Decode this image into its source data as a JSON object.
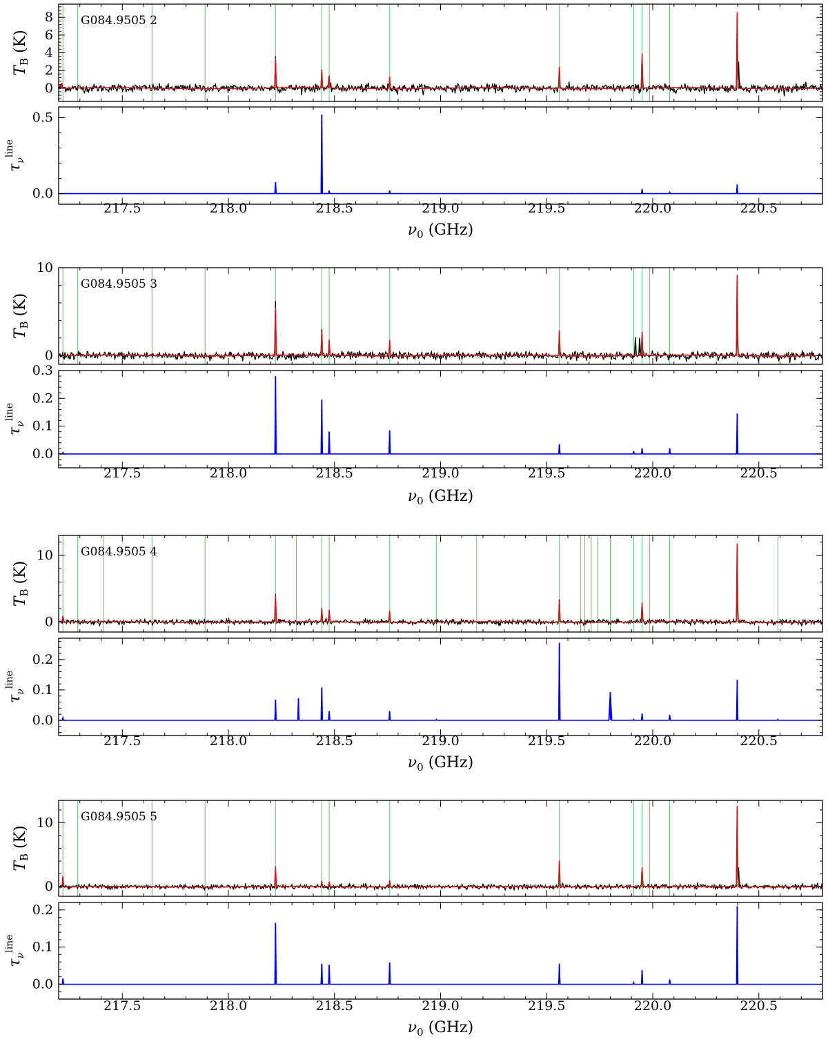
{
  "figure": {
    "x_axis": {
      "label": "ν0 (GHz)",
      "range": [
        217.2,
        220.8
      ],
      "ticks": [
        217.5,
        218.0,
        218.5,
        219.0,
        219.5,
        220.0,
        220.5
      ]
    },
    "y_label_top": "TB (K)",
    "y_label_bottom": "τνline",
    "colors": {
      "observed": "#000000",
      "model": "#c81e1e",
      "optical_depth": "#0000ff",
      "line_markers": "#4caf50"
    }
  },
  "chart_data": [
    {
      "panel": "G084.9505 2",
      "type": "line",
      "label": "G084.9505 2",
      "brightness": {
        "ylabel": "TB (K)",
        "ylim": [
          -1.5,
          9.5
        ],
        "yticks": [
          0,
          2,
          4,
          6,
          8
        ],
        "noise_rms": 0.25,
        "series": [
          {
            "name": "observed",
            "color": "#000000",
            "peaks": [
              {
                "x": 217.215,
                "y": 0.6
              },
              {
                "x": 218.222,
                "y": 3.6
              },
              {
                "x": 218.44,
                "y": 2.1
              },
              {
                "x": 218.475,
                "y": 1.4
              },
              {
                "x": 218.76,
                "y": 1.2
              },
              {
                "x": 219.56,
                "y": 2.4
              },
              {
                "x": 219.95,
                "y": 3.9
              },
              {
                "x": 220.398,
                "y": 5.5
              },
              {
                "x": 220.405,
                "y": 3.0
              }
            ]
          },
          {
            "name": "model",
            "color": "#c81e1e",
            "peaks": [
              {
                "x": 217.215,
                "y": 0.6
              },
              {
                "x": 218.222,
                "y": 3.4
              },
              {
                "x": 218.44,
                "y": 2.0
              },
              {
                "x": 218.475,
                "y": 1.3
              },
              {
                "x": 218.76,
                "y": 1.3
              },
              {
                "x": 219.56,
                "y": 2.4
              },
              {
                "x": 219.95,
                "y": 3.7
              },
              {
                "x": 220.398,
                "y": 8.6
              }
            ]
          }
        ]
      },
      "optical_depth": {
        "ylabel": "τνline",
        "ylim": [
          -0.07,
          0.57
        ],
        "yticks": [
          0.0,
          0.5
        ],
        "tick_decimals": 1,
        "series": [
          {
            "name": "tau",
            "color": "#0000ff",
            "peaks": [
              {
                "x": 218.222,
                "y": 0.075
              },
              {
                "x": 218.44,
                "y": 0.52
              },
              {
                "x": 218.475,
                "y": 0.02
              },
              {
                "x": 218.76,
                "y": 0.02
              },
              {
                "x": 219.95,
                "y": 0.03
              },
              {
                "x": 220.08,
                "y": 0.01
              },
              {
                "x": 220.398,
                "y": 0.06
              }
            ]
          }
        ]
      },
      "line_markers": [
        217.22,
        217.29,
        217.64,
        217.89,
        218.222,
        218.44,
        218.475,
        218.76,
        219.56,
        219.91,
        219.95,
        219.985,
        220.08
      ]
    },
    {
      "panel": "G084.9505 3",
      "type": "line",
      "label": "G084.9505 3",
      "brightness": {
        "ylabel": "TB (K)",
        "ylim": [
          -1.0,
          10.0
        ],
        "yticks": [
          0,
          10
        ],
        "noise_rms": 0.25,
        "series": [
          {
            "name": "observed",
            "color": "#000000",
            "peaks": [
              {
                "x": 218.222,
                "y": 6.2
              },
              {
                "x": 218.44,
                "y": 3.0
              },
              {
                "x": 218.475,
                "y": 1.8
              },
              {
                "x": 218.76,
                "y": 1.6
              },
              {
                "x": 219.56,
                "y": 2.6
              },
              {
                "x": 219.918,
                "y": 2.1
              },
              {
                "x": 219.938,
                "y": 2.0
              },
              {
                "x": 220.398,
                "y": 4.0
              }
            ]
          },
          {
            "name": "model",
            "color": "#c81e1e",
            "peaks": [
              {
                "x": 218.222,
                "y": 5.5
              },
              {
                "x": 218.44,
                "y": 2.7
              },
              {
                "x": 218.475,
                "y": 1.8
              },
              {
                "x": 218.76,
                "y": 1.8
              },
              {
                "x": 219.56,
                "y": 2.8
              },
              {
                "x": 219.95,
                "y": 2.7
              },
              {
                "x": 220.398,
                "y": 9.2
              }
            ]
          }
        ]
      },
      "optical_depth": {
        "ylabel": "τνline",
        "ylim": [
          -0.05,
          0.3
        ],
        "yticks": [
          0.0,
          0.1,
          0.2,
          0.3
        ],
        "tick_decimals": 1,
        "series": [
          {
            "name": "tau",
            "color": "#0000ff",
            "peaks": [
              {
                "x": 217.22,
                "y": 0.005
              },
              {
                "x": 218.222,
                "y": 0.28
              },
              {
                "x": 218.44,
                "y": 0.195
              },
              {
                "x": 218.475,
                "y": 0.08
              },
              {
                "x": 218.76,
                "y": 0.085
              },
              {
                "x": 219.56,
                "y": 0.035
              },
              {
                "x": 219.91,
                "y": 0.01
              },
              {
                "x": 219.95,
                "y": 0.02
              },
              {
                "x": 220.08,
                "y": 0.02
              },
              {
                "x": 220.398,
                "y": 0.145
              }
            ]
          }
        ]
      },
      "line_markers": [
        217.22,
        217.29,
        217.64,
        217.89,
        218.222,
        218.44,
        218.475,
        218.76,
        219.56,
        219.91,
        219.95,
        219.985,
        220.08
      ]
    },
    {
      "panel": "G084.9505 4",
      "type": "line",
      "label": "G084.9505 4",
      "brightness": {
        "ylabel": "TB (K)",
        "ylim": [
          -1.5,
          13.0
        ],
        "yticks": [
          0,
          10
        ],
        "noise_rms": 0.2,
        "series": [
          {
            "name": "observed",
            "color": "#000000",
            "peaks": [
              {
                "x": 217.22,
                "y": 0.9
              },
              {
                "x": 218.222,
                "y": 4.2
              },
              {
                "x": 218.44,
                "y": 2.0
              },
              {
                "x": 218.475,
                "y": 1.8
              },
              {
                "x": 218.76,
                "y": 1.6
              },
              {
                "x": 219.56,
                "y": 3.2
              },
              {
                "x": 219.95,
                "y": 2.9
              },
              {
                "x": 220.398,
                "y": 5.5
              }
            ]
          },
          {
            "name": "model",
            "color": "#c81e1e",
            "peaks": [
              {
                "x": 217.22,
                "y": 0.9
              },
              {
                "x": 218.222,
                "y": 4.0
              },
              {
                "x": 218.44,
                "y": 1.9
              },
              {
                "x": 218.475,
                "y": 1.8
              },
              {
                "x": 218.76,
                "y": 1.7
              },
              {
                "x": 219.56,
                "y": 3.2
              },
              {
                "x": 219.95,
                "y": 2.9
              },
              {
                "x": 220.398,
                "y": 11.8
              }
            ]
          }
        ]
      },
      "optical_depth": {
        "ylabel": "τνline",
        "ylim": [
          -0.05,
          0.27
        ],
        "yticks": [
          0.0,
          0.1,
          0.2
        ],
        "tick_decimals": 1,
        "series": [
          {
            "name": "tau",
            "color": "#0000ff",
            "peaks": [
              {
                "x": 217.22,
                "y": 0.008
              },
              {
                "x": 218.222,
                "y": 0.068
              },
              {
                "x": 218.33,
                "y": 0.072
              },
              {
                "x": 218.44,
                "y": 0.108
              },
              {
                "x": 218.475,
                "y": 0.03
              },
              {
                "x": 218.76,
                "y": 0.03
              },
              {
                "x": 218.98,
                "y": 0.003
              },
              {
                "x": 219.56,
                "y": 0.255
              },
              {
                "x": 219.8,
                "y": 0.093
              },
              {
                "x": 219.91,
                "y": 0.003
              },
              {
                "x": 219.95,
                "y": 0.022
              },
              {
                "x": 220.08,
                "y": 0.018
              },
              {
                "x": 220.398,
                "y": 0.133
              },
              {
                "x": 220.59,
                "y": 0.003
              }
            ]
          }
        ]
      },
      "line_markers": [
        217.22,
        217.29,
        217.41,
        217.64,
        217.89,
        218.222,
        218.32,
        218.44,
        218.475,
        218.76,
        218.98,
        219.17,
        219.56,
        219.66,
        219.68,
        219.71,
        219.74,
        219.8,
        219.91,
        219.95,
        219.985,
        220.08,
        220.59
      ]
    },
    {
      "panel": "G084.9505 5",
      "type": "line",
      "label": "G084.9505 5",
      "brightness": {
        "ylabel": "TB (K)",
        "ylim": [
          -1.5,
          13.5
        ],
        "yticks": [
          0,
          10
        ],
        "noise_rms": 0.2,
        "series": [
          {
            "name": "observed",
            "color": "#000000",
            "peaks": [
              {
                "x": 217.22,
                "y": 1.6
              },
              {
                "x": 218.222,
                "y": 3.0
              },
              {
                "x": 218.44,
                "y": 0.6
              },
              {
                "x": 218.475,
                "y": 0.5
              },
              {
                "x": 218.76,
                "y": 0.8
              },
              {
                "x": 219.56,
                "y": 3.9
              },
              {
                "x": 219.95,
                "y": 3.0
              },
              {
                "x": 220.398,
                "y": 7.8
              },
              {
                "x": 220.405,
                "y": 3.0
              }
            ]
          },
          {
            "name": "model",
            "color": "#c81e1e",
            "peaks": [
              {
                "x": 217.22,
                "y": 1.6
              },
              {
                "x": 218.222,
                "y": 3.2
              },
              {
                "x": 218.44,
                "y": 0.9
              },
              {
                "x": 218.475,
                "y": 0.8
              },
              {
                "x": 218.76,
                "y": 1.0
              },
              {
                "x": 219.56,
                "y": 4.1
              },
              {
                "x": 219.95,
                "y": 3.0
              },
              {
                "x": 220.398,
                "y": 12.6
              }
            ]
          }
        ]
      },
      "optical_depth": {
        "ylabel": "τνline",
        "ylim": [
          -0.04,
          0.22
        ],
        "yticks": [
          0.0,
          0.1,
          0.2
        ],
        "tick_decimals": 1,
        "series": [
          {
            "name": "tau",
            "color": "#0000ff",
            "peaks": [
              {
                "x": 217.22,
                "y": 0.015
              },
              {
                "x": 218.222,
                "y": 0.165
              },
              {
                "x": 218.44,
                "y": 0.055
              },
              {
                "x": 218.475,
                "y": 0.052
              },
              {
                "x": 218.76,
                "y": 0.058
              },
              {
                "x": 219.56,
                "y": 0.055
              },
              {
                "x": 219.91,
                "y": 0.005
              },
              {
                "x": 219.95,
                "y": 0.038
              },
              {
                "x": 220.08,
                "y": 0.013
              },
              {
                "x": 220.398,
                "y": 0.21
              }
            ]
          }
        ]
      },
      "line_markers": [
        217.22,
        217.29,
        217.64,
        217.89,
        218.222,
        218.44,
        218.475,
        218.76,
        219.56,
        219.91,
        219.95,
        219.985,
        220.08
      ]
    }
  ]
}
